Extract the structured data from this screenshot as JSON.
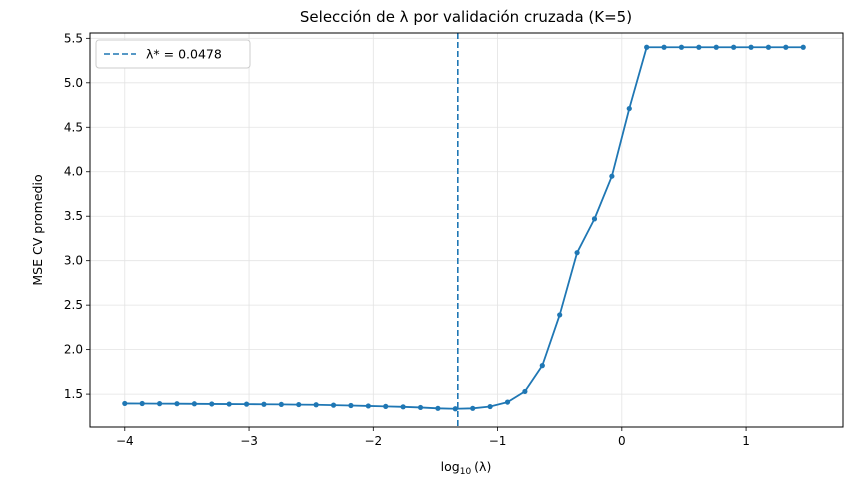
{
  "chart_data": {
    "type": "line",
    "title": "Selección de λ por validación cruzada (K=5)",
    "xlabel_main": "log",
    "xlabel_sub": "10",
    "xlabel_tail": "(λ)",
    "ylabel": "MSE CV promedio",
    "xlim": [
      -4.28,
      1.78
    ],
    "ylim": [
      1.13,
      5.56
    ],
    "x_ticks": [
      -4,
      -3,
      -2,
      -1,
      0,
      1
    ],
    "x_tick_labels": [
      "−4",
      "−3",
      "−2",
      "−1",
      "0",
      "1"
    ],
    "y_ticks": [
      1.5,
      2.0,
      2.5,
      3.0,
      3.5,
      4.0,
      4.5,
      5.0,
      5.5
    ],
    "y_tick_labels": [
      "1.5",
      "2.0",
      "2.5",
      "3.0",
      "3.5",
      "4.0",
      "4.5",
      "5.0",
      "5.5"
    ],
    "grid": true,
    "legend_position": "top-left",
    "legend_label": "λ* = 0.0478",
    "optimal_log_lambda": -1.32,
    "line_color": "#1f77b4",
    "series": [
      {
        "x": [
          -4.0,
          -3.86,
          -3.72,
          -3.58,
          -3.44,
          -3.3,
          -3.16,
          -3.02,
          -2.88,
          -2.74,
          -2.6,
          -2.46,
          -2.32,
          -2.18,
          -2.04,
          -1.9,
          -1.76,
          -1.62,
          -1.48,
          -1.34,
          -1.2,
          -1.06,
          -0.92,
          -0.78,
          -0.64,
          -0.5,
          -0.36,
          -0.22,
          -0.08,
          0.06,
          0.2,
          0.34,
          0.48,
          0.62,
          0.76,
          0.9,
          1.04,
          1.18,
          1.32,
          1.46
        ],
        "y": [
          1.395,
          1.394,
          1.393,
          1.392,
          1.391,
          1.389,
          1.388,
          1.387,
          1.386,
          1.384,
          1.382,
          1.38,
          1.376,
          1.372,
          1.367,
          1.362,
          1.357,
          1.35,
          1.34,
          1.335,
          1.34,
          1.36,
          1.41,
          1.53,
          1.82,
          2.39,
          3.09,
          3.47,
          3.95,
          4.71,
          5.4,
          5.4,
          5.4,
          5.4,
          5.4,
          5.4,
          5.4,
          5.4,
          5.4,
          5.4
        ]
      }
    ]
  }
}
